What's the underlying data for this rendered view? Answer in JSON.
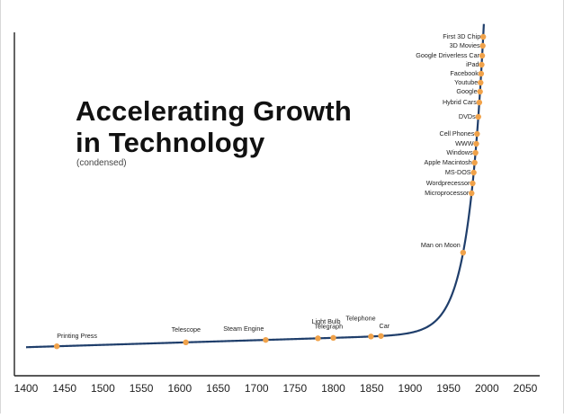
{
  "title_line1": "Accelerating Growth",
  "title_line2": "in Technology",
  "subtitle": "(condensed)",
  "colors": {
    "curve": "#1f3e6b",
    "point": "#f0a24a",
    "axis": "#222222",
    "text": "#222222"
  },
  "chart_data": {
    "type": "line",
    "xlim": [
      1400,
      2050
    ],
    "x_ticks": [
      "1400",
      "1450",
      "1500",
      "1550",
      "1600",
      "1650",
      "1700",
      "1750",
      "1800",
      "1850",
      "1900",
      "1950",
      "2000",
      "2050"
    ],
    "grid": false,
    "milestones": [
      {
        "label": "Printing Press",
        "year": 1440
      },
      {
        "label": "Telescope",
        "year": 1608
      },
      {
        "label": "Steam Engine",
        "year": 1712
      },
      {
        "label": "Telegraph",
        "year": 1780
      },
      {
        "label": "Light Bulb",
        "year": 1800
      },
      {
        "label": "Telephone",
        "year": 1849
      },
      {
        "label": "Car",
        "year": 1862
      },
      {
        "label": "Man on Moon",
        "year": 1969
      },
      {
        "label": "Microprocessor",
        "year": 1971
      },
      {
        "label": "Wordprecessor",
        "year": 1976
      },
      {
        "label": "MS-DOS",
        "year": 1981
      },
      {
        "label": "Apple Macintosh",
        "year": 1984
      },
      {
        "label": "Windows",
        "year": 1985
      },
      {
        "label": "WWW",
        "year": 1989
      },
      {
        "label": "Cell Phones",
        "year": 1990
      },
      {
        "label": "DVDs",
        "year": 1995
      },
      {
        "label": "Hybrid Cars",
        "year": 1997
      },
      {
        "label": "Google",
        "year": 1998
      },
      {
        "label": "Youtube",
        "year": 2005
      },
      {
        "label": "Facebook",
        "year": 2004
      },
      {
        "label": "iPad",
        "year": 2010
      },
      {
        "label": "Google Driverless Car",
        "year": 2010
      },
      {
        "label": "3D Movies",
        "year": 2009
      },
      {
        "label": "First 3D Chip",
        "year": 2012
      }
    ]
  }
}
